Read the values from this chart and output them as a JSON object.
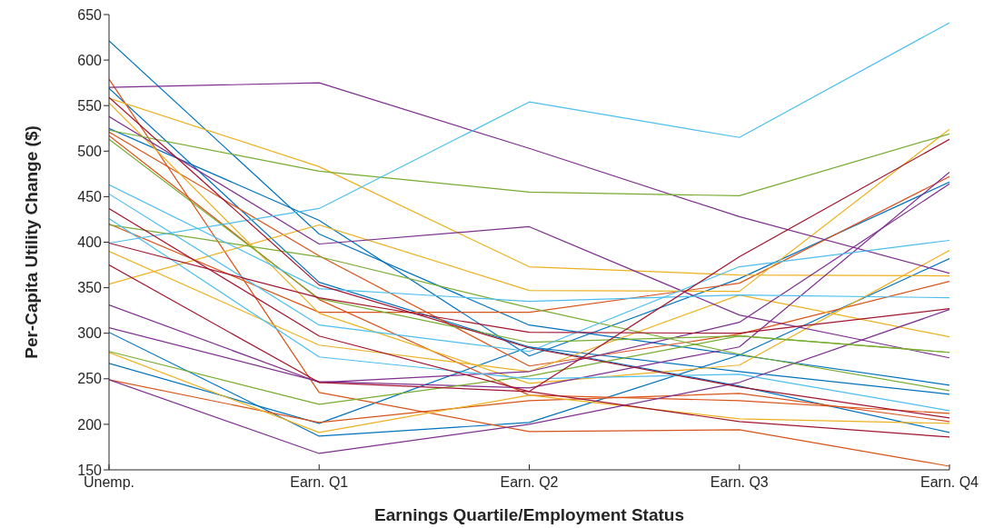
{
  "chart_data": {
    "type": "line",
    "xlabel": "Earnings Quartile/Employment Status",
    "ylabel": "Per-Capita Utility Change ($)",
    "categories": [
      "Unemp.",
      "Earn. Q1",
      "Earn. Q2",
      "Earn. Q3",
      "Earn. Q4"
    ],
    "ylim": [
      150,
      650
    ],
    "yticks": [
      150,
      200,
      250,
      300,
      350,
      400,
      450,
      500,
      550,
      600,
      650
    ],
    "grid": false,
    "legend": false,
    "marker": "none",
    "line_style": "solid",
    "series": [
      {
        "color": "#0072bd",
        "values": [
          621,
          409,
          309,
          276,
          243
        ]
      },
      {
        "color": "#0072bd",
        "values": [
          569,
          356,
          285,
          258,
          233
        ]
      },
      {
        "color": "#0072bd",
        "values": [
          525,
          424,
          275,
          360,
          466
        ]
      },
      {
        "color": "#0072bd",
        "values": [
          301,
          187,
          202,
          276,
          382
        ]
      },
      {
        "color": "#0072bd",
        "values": [
          267,
          201,
          285,
          242,
          191
        ]
      },
      {
        "color": "#d95319",
        "values": [
          579,
          235,
          192,
          194,
          154
        ]
      },
      {
        "color": "#d95319",
        "values": [
          517,
          337,
          232,
          226,
          212
        ]
      },
      {
        "color": "#d95319",
        "values": [
          521,
          385,
          264,
          299,
          357
        ]
      },
      {
        "color": "#d95319",
        "values": [
          420,
          323,
          323,
          355,
          472
        ]
      },
      {
        "color": "#d95319",
        "values": [
          249,
          202,
          226,
          234,
          203
        ]
      },
      {
        "color": "#edb120",
        "values": [
          558,
          483,
          373,
          364,
          363
        ]
      },
      {
        "color": "#edb120",
        "values": [
          553,
          322,
          245,
          265,
          391
        ]
      },
      {
        "color": "#edb120",
        "values": [
          390,
          287,
          258,
          342,
          296
        ]
      },
      {
        "color": "#edb120",
        "values": [
          354,
          419,
          347,
          346,
          524
        ]
      },
      {
        "color": "#edb120",
        "values": [
          279,
          191,
          232,
          206,
          201
        ]
      },
      {
        "color": "#7e2f8e",
        "values": [
          570,
          575,
          503,
          428,
          366
        ]
      },
      {
        "color": "#7e2f8e",
        "values": [
          538,
          398,
          417,
          320,
          273
        ]
      },
      {
        "color": "#7e2f8e",
        "values": [
          331,
          246,
          258,
          312,
          464
        ]
      },
      {
        "color": "#7e2f8e",
        "values": [
          306,
          247,
          240,
          285,
          477
        ]
      },
      {
        "color": "#7e2f8e",
        "values": [
          249,
          168,
          200,
          246,
          326
        ]
      },
      {
        "color": "#77ac30",
        "values": [
          523,
          478,
          455,
          451,
          519
        ]
      },
      {
        "color": "#77ac30",
        "values": [
          513,
          338,
          290,
          297,
          279
        ]
      },
      {
        "color": "#77ac30",
        "values": [
          419,
          384,
          328,
          277,
          237
        ]
      },
      {
        "color": "#77ac30",
        "values": [
          280,
          222,
          253,
          297,
          279
        ]
      },
      {
        "color": "#4dbeee",
        "values": [
          463,
          349,
          335,
          342,
          339
        ]
      },
      {
        "color": "#4dbeee",
        "values": [
          453,
          309,
          280,
          373,
          402
        ]
      },
      {
        "color": "#4dbeee",
        "values": [
          426,
          274,
          250,
          255,
          215
        ]
      },
      {
        "color": "#4dbeee",
        "values": [
          399,
          437,
          554,
          515,
          641
        ]
      },
      {
        "color": "#a2142f",
        "values": [
          559,
          353,
          284,
          241,
          207
        ]
      },
      {
        "color": "#a2142f",
        "values": [
          437,
          297,
          236,
          384,
          513
        ]
      },
      {
        "color": "#a2142f",
        "values": [
          399,
          339,
          301,
          300,
          327
        ]
      },
      {
        "color": "#a2142f",
        "values": [
          375,
          246,
          236,
          203,
          186
        ]
      }
    ]
  }
}
